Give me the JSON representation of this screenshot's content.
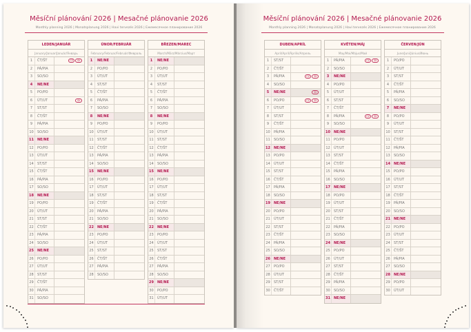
{
  "header": {
    "title": "Měsíční plánování 2026 | Mesačné plánovanie 2026",
    "subtitle": "Monthly planning 2026 | Monatsplanung 2026 | Havi tervezés 2026 | Ежемесячное планирование 2026"
  },
  "colors": {
    "accent": "#b3184f",
    "page": "#fdf8f1",
    "sunday_shade": "#ece6e0"
  },
  "weekdays": [
    "PO/PO",
    "ÚT/UT",
    "ST/ST",
    "ČT/ŠT",
    "PÁ/PIA",
    "SO/SO",
    "NE/NE"
  ],
  "badge_labels": {
    "cz": "CZ",
    "sk": "SK"
  },
  "months": [
    {
      "name": "LEDEN/JANUÁR",
      "sub": "January/Januar/Január/Январь",
      "first_weekday": 3,
      "days": 31,
      "badges": {
        "1": [
          "cz",
          "sk"
        ],
        "6": [
          "sk"
        ]
      }
    },
    {
      "name": "ÚNOR/FEBRUÁR",
      "sub": "February/Februar/Február/Февраль",
      "first_weekday": 6,
      "days": 28,
      "badges": {}
    },
    {
      "name": "BŘEZEN/MAREC",
      "sub": "March/März/Március/Март",
      "first_weekday": 6,
      "days": 31,
      "badges": {}
    },
    {
      "name": "DUBEN/APRÍL",
      "sub": "April/April/Április/Апрель",
      "first_weekday": 2,
      "days": 30,
      "badges": {
        "3": [
          "cz",
          "sk"
        ],
        "5": [
          "sk"
        ],
        "6": [
          "cz",
          "sk"
        ]
      }
    },
    {
      "name": "KVĚTEN/MÁJ",
      "sub": "May/Mai/Május/Май",
      "first_weekday": 4,
      "days": 31,
      "badges": {
        "1": [
          "cz",
          "sk"
        ],
        "8": [
          "cz",
          "sk"
        ]
      }
    },
    {
      "name": "ČERVEN/JÚN",
      "sub": "June/Juni/Június/Июнь",
      "first_weekday": 0,
      "days": 30,
      "badges": {}
    }
  ]
}
